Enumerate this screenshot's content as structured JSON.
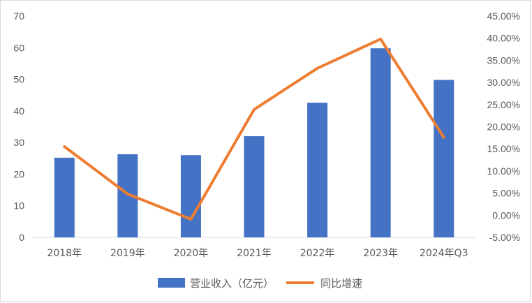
{
  "chart_data": {
    "type": "bar+line",
    "categories": [
      "2018年",
      "2019年",
      "2020年",
      "2021年",
      "2022年",
      "2023年",
      "2024年Q3"
    ],
    "series": [
      {
        "name": "营业收入（亿元）",
        "type": "bar",
        "axis": "left",
        "color": "#4472C4",
        "values": [
          25.2,
          26.3,
          26.0,
          32.0,
          42.6,
          59.8,
          49.8
        ]
      },
      {
        "name": "同比增速",
        "type": "line",
        "axis": "right",
        "color": "#ED7D31",
        "values": [
          15.5,
          4.8,
          -0.9,
          23.9,
          33.2,
          39.8,
          17.6
        ]
      }
    ],
    "left_axis": {
      "ylim": [
        0,
        70
      ],
      "ticks": [
        0,
        10,
        20,
        30,
        40,
        50,
        60,
        70
      ],
      "tick_labels": [
        "0",
        "10",
        "20",
        "30",
        "40",
        "50",
        "60",
        "70"
      ]
    },
    "right_axis": {
      "ylim": [
        -5,
        45
      ],
      "ticks": [
        -5,
        0,
        5,
        10,
        15,
        20,
        25,
        30,
        35,
        40,
        45
      ],
      "tick_labels": [
        "-5.00%",
        "0.00%",
        "5.00%",
        "10.00%",
        "15.00%",
        "20.00%",
        "25.00%",
        "30.00%",
        "35.00%",
        "40.00%",
        "45.00%"
      ]
    },
    "grid": false,
    "legend_position": "bottom",
    "title": "",
    "xlabel": "",
    "ylabel": ""
  }
}
